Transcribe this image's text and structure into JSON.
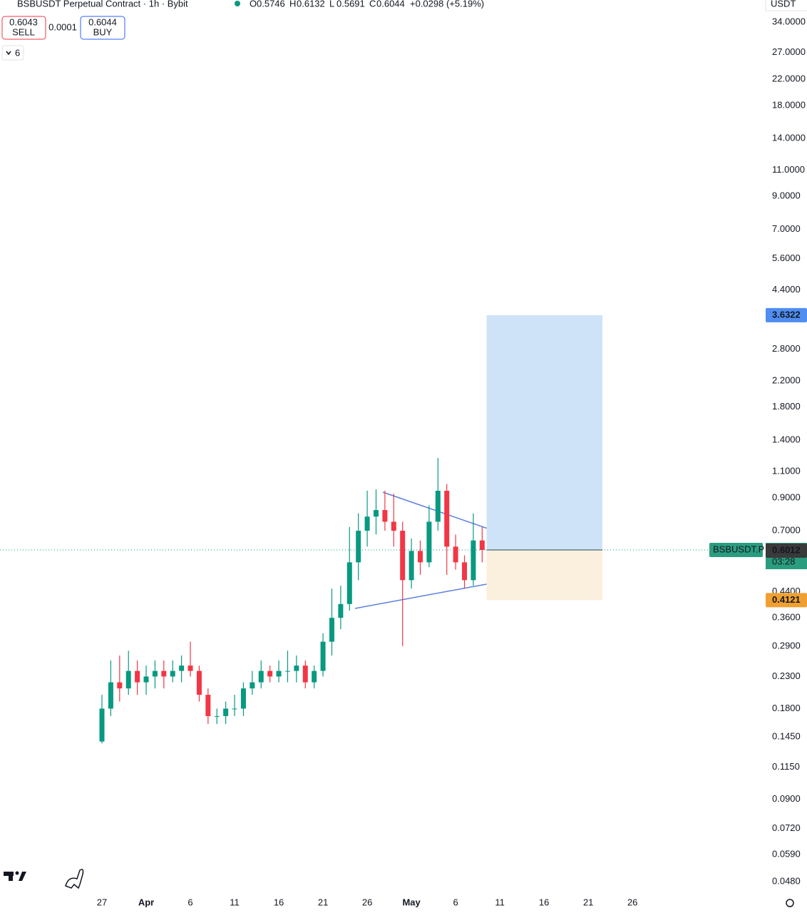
{
  "chart_data": {
    "type": "candlestick",
    "title": "BSBUSDT Perpetual Contract · 1h · Bybit",
    "legend_labels": [
      "O",
      "H",
      "L",
      "C"
    ],
    "legend_values": [
      0.5746,
      0.6132,
      0.5691,
      0.6044
    ],
    "legend_change": "+0.0298 (+5.19%)",
    "sell": {
      "price": 0.6043,
      "label": "SELL"
    },
    "spread": 0.0001,
    "buy": {
      "price": 0.6044,
      "label": "BUY"
    },
    "indicators": 6,
    "currency": "USDT",
    "log_scale": true,
    "up_color": "#089981",
    "down_color": "#f23645",
    "x": [
      86,
      87,
      88,
      89,
      90,
      91,
      92,
      93,
      94,
      95,
      96,
      97,
      98,
      99,
      100,
      101,
      102,
      103,
      104,
      105,
      106,
      107,
      108,
      109,
      110,
      111,
      112,
      113,
      114,
      115,
      116,
      117,
      118,
      119,
      120,
      121,
      122,
      123,
      124,
      125,
      126,
      127,
      128,
      129
    ],
    "open": [
      0.14,
      0.18,
      0.22,
      0.21,
      0.24,
      0.22,
      0.23,
      0.24,
      0.23,
      0.24,
      0.25,
      0.24,
      0.2,
      0.17,
      0.17,
      0.18,
      0.18,
      0.21,
      0.22,
      0.24,
      0.23,
      0.24,
      0.24,
      0.25,
      0.22,
      0.24,
      0.3,
      0.36,
      0.4,
      0.55,
      0.7,
      0.78,
      0.82,
      0.75,
      0.7,
      0.48,
      0.6,
      0.55,
      0.75,
      0.95,
      0.62,
      0.55,
      0.48,
      0.65
    ],
    "high": [
      0.2,
      0.26,
      0.27,
      0.28,
      0.26,
      0.25,
      0.26,
      0.26,
      0.26,
      0.27,
      0.3,
      0.25,
      0.21,
      0.18,
      0.19,
      0.2,
      0.22,
      0.24,
      0.26,
      0.25,
      0.26,
      0.28,
      0.27,
      0.26,
      0.25,
      0.32,
      0.45,
      0.46,
      0.72,
      0.8,
      0.95,
      0.96,
      0.95,
      0.93,
      0.75,
      0.66,
      0.65,
      0.85,
      1.22,
      1.0,
      0.68,
      0.58,
      0.8,
      0.72
    ],
    "low": [
      0.138,
      0.17,
      0.19,
      0.2,
      0.2,
      0.2,
      0.21,
      0.21,
      0.22,
      0.22,
      0.23,
      0.19,
      0.16,
      0.16,
      0.16,
      0.17,
      0.17,
      0.2,
      0.21,
      0.22,
      0.22,
      0.22,
      0.22,
      0.21,
      0.21,
      0.23,
      0.27,
      0.33,
      0.38,
      0.48,
      0.62,
      0.68,
      0.7,
      0.62,
      0.29,
      0.45,
      0.5,
      0.53,
      0.7,
      0.5,
      0.52,
      0.45,
      0.46,
      0.55
    ],
    "close": [
      0.18,
      0.22,
      0.21,
      0.24,
      0.22,
      0.23,
      0.24,
      0.23,
      0.24,
      0.25,
      0.24,
      0.2,
      0.17,
      0.17,
      0.18,
      0.18,
      0.21,
      0.22,
      0.24,
      0.23,
      0.24,
      0.24,
      0.25,
      0.22,
      0.24,
      0.3,
      0.36,
      0.4,
      0.55,
      0.7,
      0.78,
      0.82,
      0.75,
      0.7,
      0.48,
      0.6,
      0.55,
      0.75,
      0.95,
      0.62,
      0.55,
      0.48,
      0.65,
      0.6044
    ],
    "xlim": [
      74.47,
      160.9
    ],
    "xticks": [
      {
        "value": 86,
        "label": "27"
      },
      {
        "value": 91,
        "label": "Apr"
      },
      {
        "value": 96,
        "label": "6"
      },
      {
        "value": 101,
        "label": "11"
      },
      {
        "value": 106,
        "label": "16"
      },
      {
        "value": 111,
        "label": "21"
      },
      {
        "value": 116,
        "label": "26"
      },
      {
        "value": 121,
        "label": "May"
      },
      {
        "value": 126,
        "label": "6"
      },
      {
        "value": 131,
        "label": "11"
      },
      {
        "value": 136,
        "label": "16"
      },
      {
        "value": 141,
        "label": "21"
      },
      {
        "value": 146,
        "label": "26"
      }
    ],
    "ylim": [
      0.0445,
      40.3
    ],
    "yticks": [
      {
        "value": 34,
        "label": "34.0000"
      },
      {
        "value": 27,
        "label": "27.0000"
      },
      {
        "value": 22,
        "label": "22.0000"
      },
      {
        "value": 18,
        "label": "18.0000"
      },
      {
        "value": 14,
        "label": "14.0000"
      },
      {
        "value": 11,
        "label": "11.0000"
      },
      {
        "value": 9,
        "label": "9.0000"
      },
      {
        "value": 7,
        "label": "7.0000"
      },
      {
        "value": 5.6,
        "label": "5.6000"
      },
      {
        "value": 4.4,
        "label": "4.4000"
      },
      {
        "value": 2.8,
        "label": "2.8000"
      },
      {
        "value": 2.2,
        "label": "2.2000"
      },
      {
        "value": 1.8,
        "label": "1.8000"
      },
      {
        "value": 1.4,
        "label": "1.4000"
      },
      {
        "value": 1.1,
        "label": "1.1000"
      },
      {
        "value": 0.9,
        "label": "0.9000"
      },
      {
        "value": 0.7,
        "label": "0.7000"
      },
      {
        "value": 0.44,
        "label": "0.4400"
      },
      {
        "value": 0.36,
        "label": "0.3600"
      },
      {
        "value": 0.29,
        "label": "0.2900"
      },
      {
        "value": 0.23,
        "label": "0.2300"
      },
      {
        "value": 0.18,
        "label": "0.1800"
      },
      {
        "value": 0.145,
        "label": "0.1450"
      },
      {
        "value": 0.115,
        "label": "0.1150"
      },
      {
        "value": 0.09,
        "label": "0.0900"
      },
      {
        "value": 0.072,
        "label": "0.0720"
      },
      {
        "value": 0.059,
        "label": "0.0590"
      },
      {
        "value": 0.048,
        "label": "0.0480"
      }
    ],
    "position": {
      "from": 129.5,
      "to": 142.6,
      "target": 3.6322,
      "entry": 0.6044,
      "stop": 0.4121
    },
    "symbol_label": "BSBUSDT.P",
    "last_price": 0.6044,
    "countdown": "03:28",
    "other_price": 0.6012
  }
}
